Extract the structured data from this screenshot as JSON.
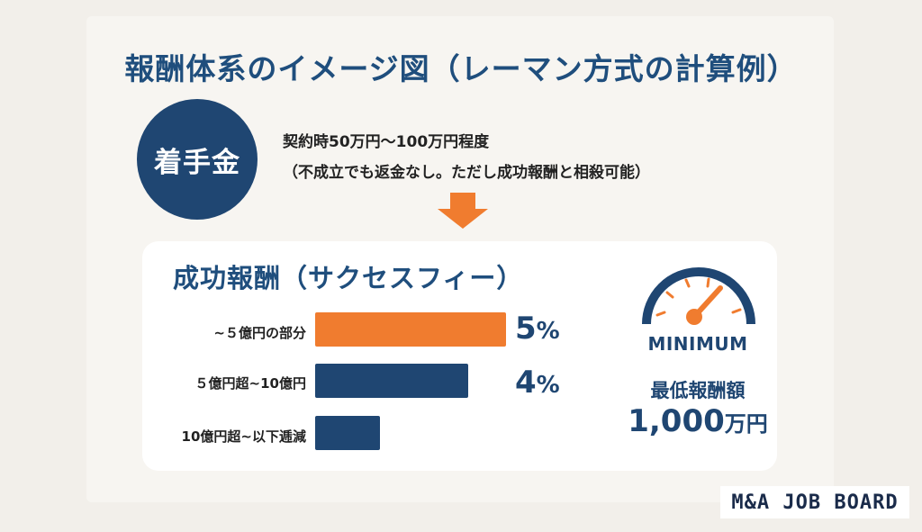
{
  "title": "報酬体系のイメージ図（レーマン方式の計算例）",
  "retainer": {
    "label": "着手金",
    "line1": "契約時50万円～100万円程度",
    "line2": "（不成立でも返金なし。ただし成功報酬と相殺可能）"
  },
  "success_fee": {
    "title": "成功報酬（サクセスフィー）",
    "tiers": [
      {
        "label": "~５億円の部分",
        "value": 5,
        "value_label": "5",
        "unit": "%",
        "color": "#f07c2f"
      },
      {
        "label": "５億円超~10億円",
        "value": 4,
        "value_label": "4",
        "unit": "%",
        "color": "#1f4672"
      },
      {
        "label": "10億円超~以下逓減",
        "value": 1.7,
        "value_label": "",
        "unit": "",
        "color": "#1f4672"
      }
    ]
  },
  "minimum": {
    "badge": "MINIMUM",
    "label": "最低報酬額",
    "amount": "1,000",
    "unit": "万円",
    "icon": "gauge-icon"
  },
  "logo": "M&A JOB BOARD",
  "colors": {
    "navy": "#1f4672",
    "orange": "#f07c2f",
    "title_blue": "#1f4e7d"
  }
}
